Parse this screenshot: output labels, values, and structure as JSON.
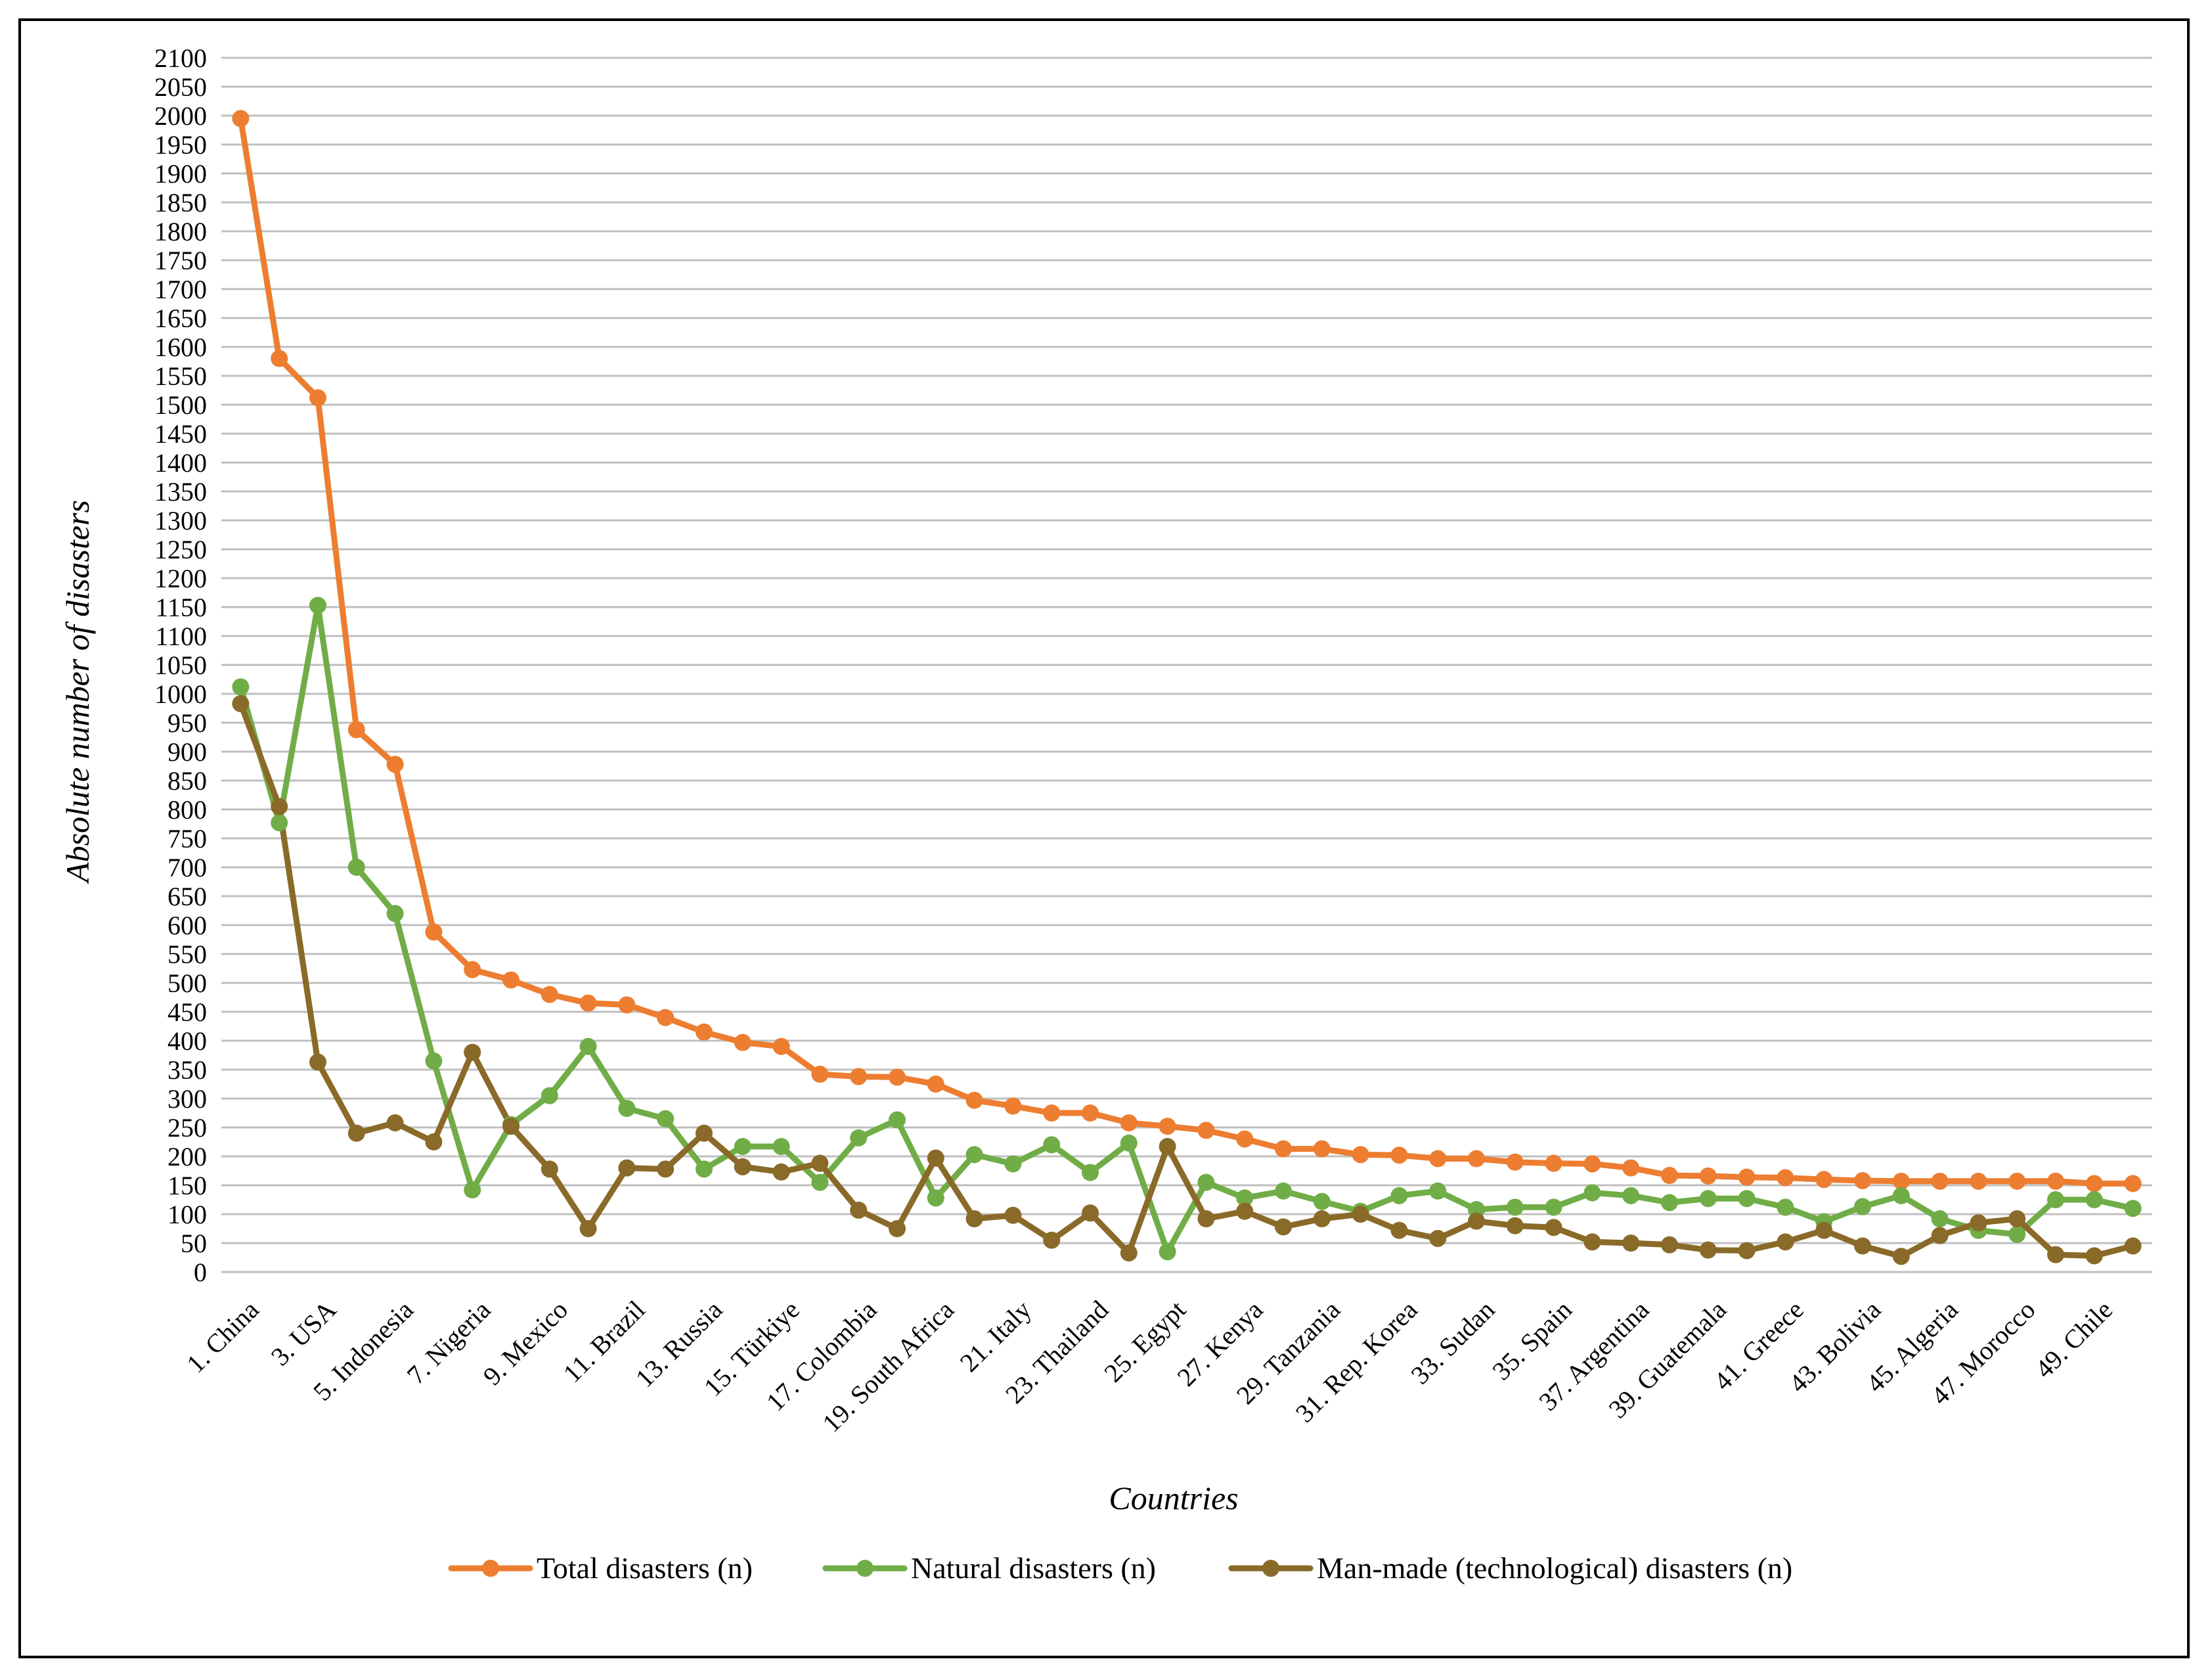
{
  "chart_data": {
    "type": "line",
    "title": "",
    "xlabel": "Countries",
    "ylabel": "Absolute number of disasters",
    "ylim": [
      0,
      2100
    ],
    "ystep": 50,
    "grid": true,
    "legend_position": "bottom",
    "x": [
      "1",
      "2",
      "3",
      "4",
      "5",
      "6",
      "7",
      "8",
      "9",
      "10",
      "11",
      "12",
      "13",
      "14",
      "15",
      "16",
      "17",
      "18",
      "19",
      "20",
      "21",
      "22",
      "23",
      "24",
      "25",
      "26",
      "27",
      "28",
      "29",
      "30",
      "31",
      "32",
      "33",
      "34",
      "35",
      "36",
      "37",
      "38",
      "39",
      "40",
      "41",
      "42",
      "43",
      "44",
      "45",
      "46",
      "47",
      "48",
      "49",
      "50"
    ],
    "x_tick_labels": [
      "1. China",
      "3. USA",
      "5. Indonesia",
      "7. Nigeria",
      "9. Mexico",
      "11. Brazil",
      "13. Russia",
      "15. Türkiye",
      "17. Colombia",
      "19. South Africa",
      "21. Italy",
      "23. Thailand",
      "25. Egypt",
      "27. Kenya",
      "29. Tanzania",
      "31. Rep. Korea",
      "33. Sudan",
      "35. Spain",
      "37. Argentina",
      "39. Guatemala",
      "41. Greece",
      "43. Bolivia",
      "45. Algeria",
      "47. Morocco",
      "49. Chile"
    ],
    "series": [
      {
        "name": "Total disasters (n)",
        "color": "#ED7D31",
        "values": [
          1995,
          1580,
          1512,
          938,
          878,
          588,
          523,
          505,
          480,
          465,
          462,
          440,
          415,
          397,
          390,
          342,
          338,
          337,
          325,
          297,
          287,
          275,
          275,
          258,
          252,
          245,
          230,
          213,
          213,
          203,
          202,
          196,
          196,
          190,
          188,
          187,
          180,
          167,
          166,
          164,
          163,
          160,
          158,
          157,
          157,
          157,
          157,
          157,
          153,
          153
        ]
      },
      {
        "name": "Natural disasters (n)",
        "color": "#70AD47",
        "values": [
          1012,
          777,
          1153,
          700,
          620,
          365,
          142,
          255,
          305,
          390,
          283,
          265,
          178,
          217,
          217,
          155,
          232,
          263,
          128,
          203,
          187,
          220,
          172,
          223,
          35,
          155,
          128,
          140,
          122,
          105,
          132,
          140,
          108,
          112,
          112,
          137,
          132,
          120,
          127,
          127,
          112,
          87,
          113,
          132,
          92,
          72,
          65,
          125,
          125,
          110
        ]
      },
      {
        "name": "Man-made (technological) disasters (n)",
        "color": "#8A6A28",
        "values": [
          983,
          805,
          363,
          240,
          258,
          225,
          380,
          252,
          178,
          75,
          180,
          178,
          240,
          182,
          173,
          188,
          107,
          75,
          197,
          92,
          98,
          55,
          102,
          33,
          217,
          92,
          105,
          78,
          92,
          100,
          72,
          58,
          88,
          80,
          77,
          52,
          50,
          47,
          38,
          37,
          52,
          72,
          45,
          27,
          63,
          85,
          92,
          30,
          28,
          45
        ]
      }
    ]
  }
}
